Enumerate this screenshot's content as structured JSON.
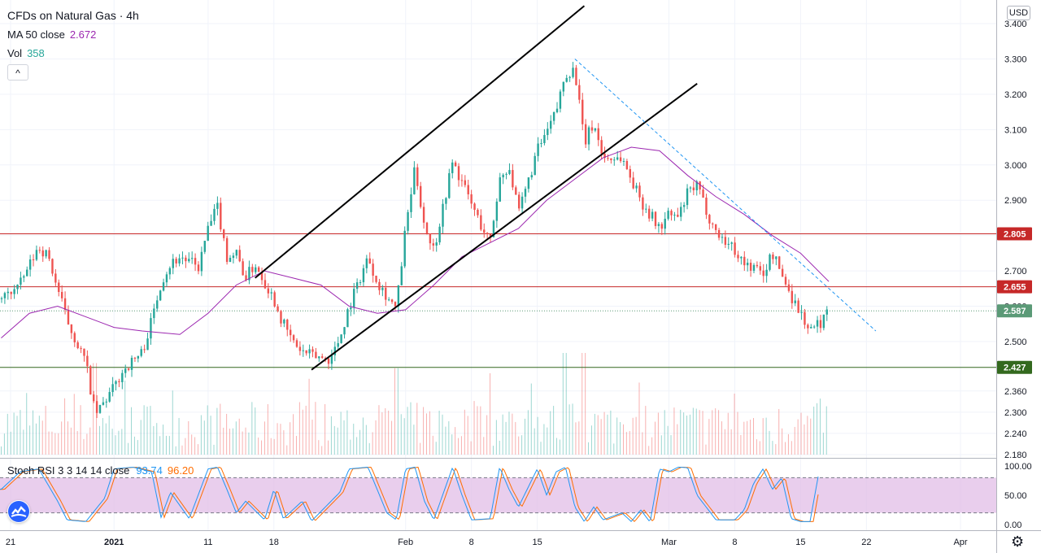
{
  "header": {
    "title": "CFDs on Natural Gas · 4h",
    "ma_label": "MA 50 close",
    "ma_value": "2.672",
    "vol_label": "Vol",
    "vol_value": "358",
    "collapse_glyph": "^",
    "currency": "USD"
  },
  "oscillator": {
    "label": "Stoch RSI 3 3 14 14 close",
    "k_value": "93.74",
    "d_value": "96.20"
  },
  "icons": {
    "logo": "tradingview-logo-icon",
    "settings": "gear-icon"
  },
  "colors": {
    "up": "#26a69a",
    "down": "#ef5350",
    "ma": "#9c27b0",
    "stoch_k": "#2196f3",
    "stoch_d": "#ff6d00",
    "band_fill": "#e1bee7",
    "resistance_line": "#c62828",
    "support_line": "#33691e",
    "support_badge": "#33691e",
    "resistance_badge": "#c62828",
    "last_price_badge": "#5b9a77",
    "trendline": "#000000",
    "dashed_trend": "#2196f3"
  },
  "chart_data": {
    "type": "candlestick",
    "instrument": "CFDs on Natural Gas",
    "interval": "4h",
    "y_ticks": [
      "3.400",
      "3.300",
      "3.200",
      "3.100",
      "3.000",
      "2.900",
      "2.800",
      "2.700",
      "2.600",
      "2.500",
      "2.427",
      "2.360",
      "2.300",
      "2.240",
      "2.180"
    ],
    "ylim": [
      2.16,
      3.43
    ],
    "x_ticks": [
      {
        "label": "21",
        "date": "2020-12-21"
      },
      {
        "label": "2021",
        "date": "2021-01-01"
      },
      {
        "label": "11",
        "date": "2021-01-11"
      },
      {
        "label": "18",
        "date": "2021-01-18"
      },
      {
        "label": "Feb",
        "date": "2021-02-01"
      },
      {
        "label": "8",
        "date": "2021-02-08"
      },
      {
        "label": "15",
        "date": "2021-02-15"
      },
      {
        "label": "Mar",
        "date": "2021-03-01"
      },
      {
        "label": "8",
        "date": "2021-03-08"
      },
      {
        "label": "15",
        "date": "2021-03-15"
      },
      {
        "label": "22",
        "date": "2021-03-22"
      },
      {
        "label": "Apr",
        "date": "2021-04-01"
      }
    ],
    "close_path": [
      [
        "2020-12-20",
        2.62
      ],
      [
        "2020-12-22",
        2.66
      ],
      [
        "2020-12-24",
        2.77
      ],
      [
        "2020-12-25",
        2.74
      ],
      [
        "2020-12-27",
        2.56
      ],
      [
        "2020-12-29",
        2.44
      ],
      [
        "2020-12-30",
        2.29
      ],
      [
        "2020-12-31",
        2.33
      ],
      [
        "2021-01-01",
        2.37
      ],
      [
        "2021-01-02",
        2.42
      ],
      [
        "2021-01-04",
        2.47
      ],
      [
        "2021-01-05",
        2.56
      ],
      [
        "2021-01-06",
        2.67
      ],
      [
        "2021-01-07",
        2.72
      ],
      [
        "2021-01-08",
        2.74
      ],
      [
        "2021-01-10",
        2.71
      ],
      [
        "2021-01-11",
        2.82
      ],
      [
        "2021-01-12",
        2.88
      ],
      [
        "2021-01-13",
        2.74
      ],
      [
        "2021-01-14",
        2.75
      ],
      [
        "2021-01-15",
        2.68
      ],
      [
        "2021-01-16",
        2.72
      ],
      [
        "2021-01-18",
        2.62
      ],
      [
        "2021-01-19",
        2.55
      ],
      [
        "2021-01-20",
        2.5
      ],
      [
        "2021-01-21",
        2.47
      ],
      [
        "2021-01-22",
        2.46
      ],
      [
        "2021-01-24",
        2.45
      ],
      [
        "2021-01-25",
        2.51
      ],
      [
        "2021-01-26",
        2.6
      ],
      [
        "2021-01-28",
        2.74
      ],
      [
        "2021-01-29",
        2.67
      ],
      [
        "2021-01-31",
        2.59
      ],
      [
        "2021-02-01",
        2.82
      ],
      [
        "2021-02-02",
        2.99
      ],
      [
        "2021-02-03",
        2.83
      ],
      [
        "2021-02-04",
        2.76
      ],
      [
        "2021-02-06",
        3.01
      ],
      [
        "2021-02-07",
        2.95
      ],
      [
        "2021-02-08",
        2.89
      ],
      [
        "2021-02-09",
        2.83
      ],
      [
        "2021-02-10",
        2.78
      ],
      [
        "2021-02-11",
        2.96
      ],
      [
        "2021-02-12",
        3.0
      ],
      [
        "2021-02-13",
        2.86
      ],
      [
        "2021-02-15",
        3.04
      ],
      [
        "2021-02-16",
        3.09
      ],
      [
        "2021-02-17",
        3.15
      ],
      [
        "2021-02-18",
        3.26
      ],
      [
        "2021-02-19",
        3.27
      ],
      [
        "2021-02-20",
        3.06
      ],
      [
        "2021-02-21",
        3.12
      ],
      [
        "2021-02-22",
        3.02
      ],
      [
        "2021-02-24",
        3.02
      ],
      [
        "2021-02-25",
        2.96
      ],
      [
        "2021-02-26",
        2.9
      ],
      [
        "2021-02-27",
        2.86
      ],
      [
        "2021-02-28",
        2.82
      ],
      [
        "2021-03-01",
        2.86
      ],
      [
        "2021-03-02",
        2.85
      ],
      [
        "2021-03-03",
        2.92
      ],
      [
        "2021-03-04",
        2.94
      ],
      [
        "2021-03-05",
        2.87
      ],
      [
        "2021-03-06",
        2.81
      ],
      [
        "2021-03-08",
        2.76
      ],
      [
        "2021-03-09",
        2.72
      ],
      [
        "2021-03-10",
        2.71
      ],
      [
        "2021-03-11",
        2.69
      ],
      [
        "2021-03-12",
        2.75
      ],
      [
        "2021-03-13",
        2.69
      ],
      [
        "2021-03-14",
        2.63
      ],
      [
        "2021-03-15",
        2.58
      ],
      [
        "2021-03-16",
        2.53
      ],
      [
        "2021-03-17",
        2.55
      ],
      [
        "2021-03-18",
        2.59
      ]
    ],
    "moving_average": {
      "name": "MA 50 close",
      "points": [
        [
          "2020-12-20",
          2.51
        ],
        [
          "2020-12-23",
          2.58
        ],
        [
          "2020-12-26",
          2.6
        ],
        [
          "2020-12-29",
          2.57
        ],
        [
          "2021-01-01",
          2.54
        ],
        [
          "2021-01-04",
          2.53
        ],
        [
          "2021-01-08",
          2.52
        ],
        [
          "2021-01-11",
          2.58
        ],
        [
          "2021-01-14",
          2.66
        ],
        [
          "2021-01-17",
          2.7
        ],
        [
          "2021-01-20",
          2.68
        ],
        [
          "2021-01-23",
          2.66
        ],
        [
          "2021-01-26",
          2.6
        ],
        [
          "2021-01-29",
          2.58
        ],
        [
          "2021-02-01",
          2.59
        ],
        [
          "2021-02-04",
          2.66
        ],
        [
          "2021-02-07",
          2.74
        ],
        [
          "2021-02-10",
          2.78
        ],
        [
          "2021-02-13",
          2.82
        ],
        [
          "2021-02-16",
          2.9
        ],
        [
          "2021-02-19",
          2.96
        ],
        [
          "2021-02-22",
          3.02
        ],
        [
          "2021-02-25",
          3.05
        ],
        [
          "2021-02-28",
          3.04
        ],
        [
          "2021-03-03",
          2.97
        ],
        [
          "2021-03-06",
          2.91
        ],
        [
          "2021-03-09",
          2.86
        ],
        [
          "2021-03-12",
          2.8
        ],
        [
          "2021-03-15",
          2.75
        ],
        [
          "2021-03-18",
          2.67
        ]
      ]
    },
    "volume": {
      "name": "Vol",
      "last": 358,
      "spikes": [
        [
          "2020-12-30",
          0.9
        ],
        [
          "2021-02-18",
          1.0
        ],
        [
          "2021-02-20",
          1.0
        ],
        [
          "2021-02-10",
          0.8
        ],
        [
          "2021-01-31",
          0.85
        ],
        [
          "2021-03-08",
          0.6
        ]
      ]
    },
    "horizontal_levels": [
      {
        "price": 2.805,
        "label": "2.805",
        "kind": "resistance"
      },
      {
        "price": 2.655,
        "label": "2.655",
        "kind": "resistance"
      },
      {
        "price": 2.427,
        "label": "2.427",
        "kind": "support"
      }
    ],
    "last_price": {
      "price": 2.587,
      "label": "2.587"
    },
    "trendlines": [
      {
        "from": [
          "2021-01-16",
          2.68
        ],
        "to": [
          "2021-02-20",
          3.45
        ],
        "style": "solid"
      },
      {
        "from": [
          "2021-01-22",
          2.42
        ],
        "to": [
          "2021-03-04",
          3.23
        ],
        "style": "solid"
      },
      {
        "from": [
          "2021-02-19",
          3.3
        ],
        "to": [
          "2021-03-23",
          2.53
        ],
        "style": "dashed"
      }
    ],
    "stoch_rsi": {
      "name": "Stoch RSI 3 3 14 14 close",
      "k": 93.74,
      "d": 96.2,
      "y_ticks": [
        "100.00",
        "50.00",
        "0.00"
      ],
      "band": [
        20,
        80
      ],
      "k_path": [
        [
          "2020-12-20",
          60
        ],
        [
          "2020-12-22",
          90
        ],
        [
          "2020-12-24",
          95
        ],
        [
          "2020-12-26",
          40
        ],
        [
          "2020-12-27",
          8
        ],
        [
          "2020-12-29",
          5
        ],
        [
          "2020-12-31",
          45
        ],
        [
          "2021-01-01",
          95
        ],
        [
          "2021-01-03",
          98
        ],
        [
          "2021-01-05",
          90
        ],
        [
          "2021-01-06",
          12
        ],
        [
          "2021-01-07",
          55
        ],
        [
          "2021-01-09",
          10
        ],
        [
          "2021-01-11",
          95
        ],
        [
          "2021-01-12",
          98
        ],
        [
          "2021-01-13",
          60
        ],
        [
          "2021-01-14",
          20
        ],
        [
          "2021-01-15",
          40
        ],
        [
          "2021-01-17",
          8
        ],
        [
          "2021-01-18",
          60
        ],
        [
          "2021-01-19",
          10
        ],
        [
          "2021-01-21",
          40
        ],
        [
          "2021-01-22",
          6
        ],
        [
          "2021-01-25",
          55
        ],
        [
          "2021-01-26",
          95
        ],
        [
          "2021-01-28",
          98
        ],
        [
          "2021-01-30",
          20
        ],
        [
          "2021-01-31",
          8
        ],
        [
          "2021-02-01",
          95
        ],
        [
          "2021-02-02",
          98
        ],
        [
          "2021-02-03",
          40
        ],
        [
          "2021-02-04",
          8
        ],
        [
          "2021-02-06",
          98
        ],
        [
          "2021-02-07",
          50
        ],
        [
          "2021-02-08",
          8
        ],
        [
          "2021-02-10",
          10
        ],
        [
          "2021-02-11",
          98
        ],
        [
          "2021-02-12",
          60
        ],
        [
          "2021-02-13",
          30
        ],
        [
          "2021-02-15",
          95
        ],
        [
          "2021-02-16",
          50
        ],
        [
          "2021-02-17",
          90
        ],
        [
          "2021-02-18",
          98
        ],
        [
          "2021-02-19",
          30
        ],
        [
          "2021-02-20",
          5
        ],
        [
          "2021-02-21",
          30
        ],
        [
          "2021-02-22",
          8
        ],
        [
          "2021-02-24",
          20
        ],
        [
          "2021-02-25",
          5
        ],
        [
          "2021-02-26",
          25
        ],
        [
          "2021-02-27",
          4
        ],
        [
          "2021-02-28",
          95
        ],
        [
          "2021-03-01",
          90
        ],
        [
          "2021-03-02",
          98
        ],
        [
          "2021-03-03",
          97
        ],
        [
          "2021-03-04",
          50
        ],
        [
          "2021-03-06",
          8
        ],
        [
          "2021-03-08",
          8
        ],
        [
          "2021-03-09",
          25
        ],
        [
          "2021-03-10",
          70
        ],
        [
          "2021-03-11",
          95
        ],
        [
          "2021-03-12",
          60
        ],
        [
          "2021-03-13",
          80
        ],
        [
          "2021-03-14",
          10
        ],
        [
          "2021-03-15",
          5
        ],
        [
          "2021-03-16",
          5
        ],
        [
          "2021-03-17",
          93.74
        ]
      ]
    }
  }
}
